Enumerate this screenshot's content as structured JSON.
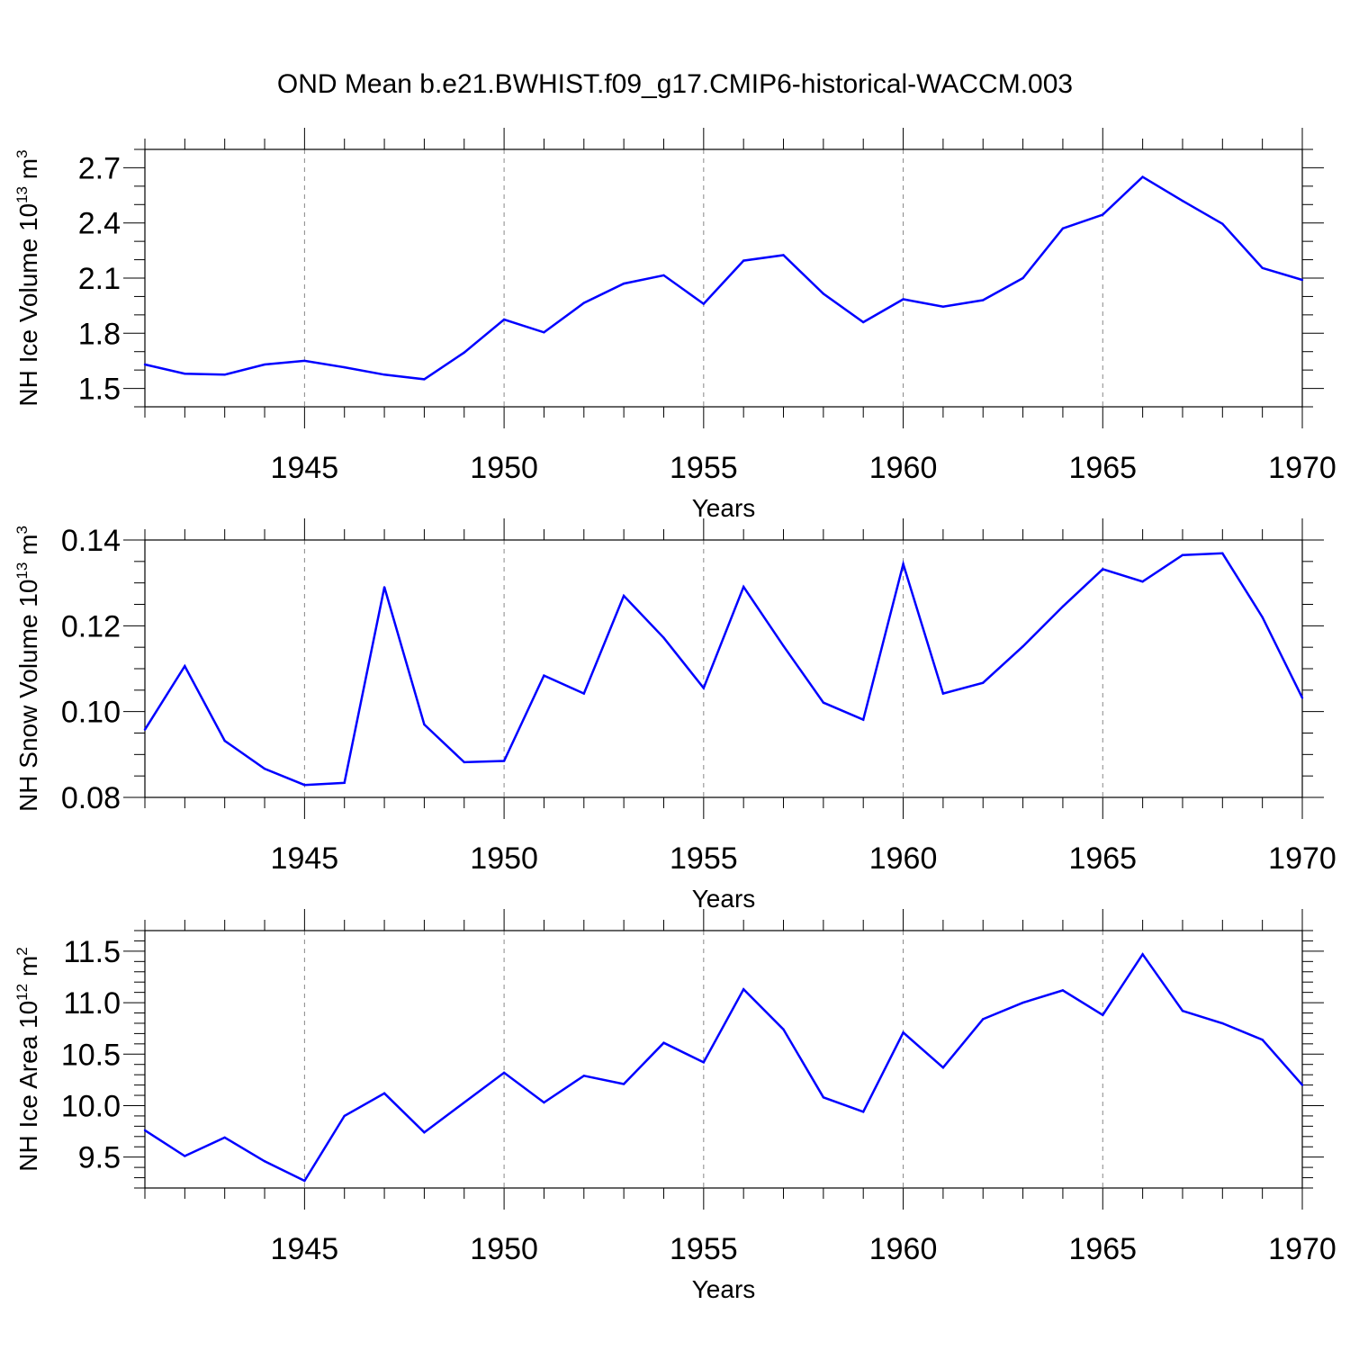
{
  "title": "OND Mean b.e21.BWHIST.f09_g17.CMIP6-historical-WACCM.003",
  "colors": {
    "line": "#0000ff",
    "axis": "#000000",
    "grid": "#888888"
  },
  "chart_data": [
    {
      "type": "line",
      "ylabel_main": "NH Ice Volume 10",
      "ylabel_exp": "13",
      "ylabel_unit": " m",
      "ylabel_unit_exp": "3",
      "xlabel": "Years",
      "xlim": [
        1941,
        1970
      ],
      "ylim": [
        1.4,
        2.8
      ],
      "yticks": [
        1.5,
        1.8,
        2.1,
        2.4,
        2.7
      ],
      "ytick_labels": [
        "1.5",
        "1.8",
        "2.1",
        "2.4",
        "2.7"
      ],
      "yminor_step": 0.1,
      "xticks": [
        1945,
        1950,
        1955,
        1960,
        1965,
        1970
      ],
      "xtick_labels": [
        "1945",
        "1950",
        "1955",
        "1960",
        "1965",
        "1970"
      ],
      "x": [
        1941,
        1942,
        1943,
        1944,
        1945,
        1946,
        1947,
        1948,
        1949,
        1950,
        1951,
        1952,
        1953,
        1954,
        1955,
        1956,
        1957,
        1958,
        1959,
        1960,
        1961,
        1962,
        1963,
        1964,
        1965,
        1966,
        1967,
        1968,
        1969,
        1970
      ],
      "values": [
        1.63,
        1.58,
        1.575,
        1.63,
        1.65,
        1.615,
        1.575,
        1.55,
        1.695,
        1.875,
        1.805,
        1.965,
        2.07,
        2.115,
        1.96,
        2.195,
        2.225,
        2.015,
        1.86,
        1.985,
        1.945,
        1.98,
        2.1,
        2.37,
        2.445,
        2.65,
        2.52,
        2.395,
        2.155,
        2.09
      ]
    },
    {
      "type": "line",
      "ylabel_main": "NH Snow Volume 10",
      "ylabel_exp": "13",
      "ylabel_unit": " m",
      "ylabel_unit_exp": "3",
      "xlabel": "Years",
      "xlim": [
        1941,
        1970
      ],
      "ylim": [
        0.08,
        0.14
      ],
      "yticks": [
        0.08,
        0.1,
        0.12,
        0.14
      ],
      "ytick_labels": [
        "0.08",
        "0.10",
        "0.12",
        "0.14"
      ],
      "yminor_step": 0.005,
      "xticks": [
        1945,
        1950,
        1955,
        1960,
        1965,
        1970
      ],
      "xtick_labels": [
        "1945",
        "1950",
        "1955",
        "1960",
        "1965",
        "1970"
      ],
      "x": [
        1941,
        1942,
        1943,
        1944,
        1945,
        1946,
        1947,
        1948,
        1949,
        1950,
        1951,
        1952,
        1953,
        1954,
        1955,
        1956,
        1957,
        1958,
        1959,
        1960,
        1961,
        1962,
        1963,
        1964,
        1965,
        1966,
        1967,
        1968,
        1969,
        1970
      ],
      "values": [
        0.0958,
        0.1106,
        0.0932,
        0.0867,
        0.0829,
        0.0834,
        0.129,
        0.097,
        0.0882,
        0.0885,
        0.1084,
        0.1042,
        0.127,
        0.1172,
        0.1055,
        0.1291,
        0.1153,
        0.1021,
        0.0981,
        0.1344,
        0.1042,
        0.1067,
        0.1152,
        0.1245,
        0.1332,
        0.1303,
        0.1365,
        0.1369,
        0.122,
        0.1032
      ]
    },
    {
      "type": "line",
      "ylabel_main": "NH Ice Area 10",
      "ylabel_exp": "12",
      "ylabel_unit": " m",
      "ylabel_unit_exp": "2",
      "xlabel": "Years",
      "xlim": [
        1941,
        1970
      ],
      "ylim": [
        9.2,
        11.7
      ],
      "yticks": [
        9.5,
        10.0,
        10.5,
        11.0,
        11.5
      ],
      "ytick_labels": [
        "9.5",
        "10.0",
        "10.5",
        "11.0",
        "11.5"
      ],
      "yminor_step": 0.1,
      "xticks": [
        1945,
        1950,
        1955,
        1960,
        1965,
        1970
      ],
      "xtick_labels": [
        "1945",
        "1950",
        "1955",
        "1960",
        "1965",
        "1970"
      ],
      "x": [
        1941,
        1942,
        1943,
        1944,
        1945,
        1946,
        1947,
        1948,
        1949,
        1950,
        1951,
        1952,
        1953,
        1954,
        1955,
        1956,
        1957,
        1958,
        1959,
        1960,
        1961,
        1962,
        1963,
        1964,
        1965,
        1966,
        1967,
        1968,
        1969,
        1970
      ],
      "values": [
        9.76,
        9.51,
        9.69,
        9.46,
        9.27,
        9.9,
        10.12,
        9.74,
        10.03,
        10.32,
        10.03,
        10.29,
        10.21,
        10.61,
        10.42,
        11.13,
        10.74,
        10.08,
        9.94,
        10.71,
        10.37,
        10.84,
        11.0,
        11.12,
        10.88,
        11.47,
        10.92,
        10.8,
        10.64,
        10.2
      ]
    }
  ]
}
